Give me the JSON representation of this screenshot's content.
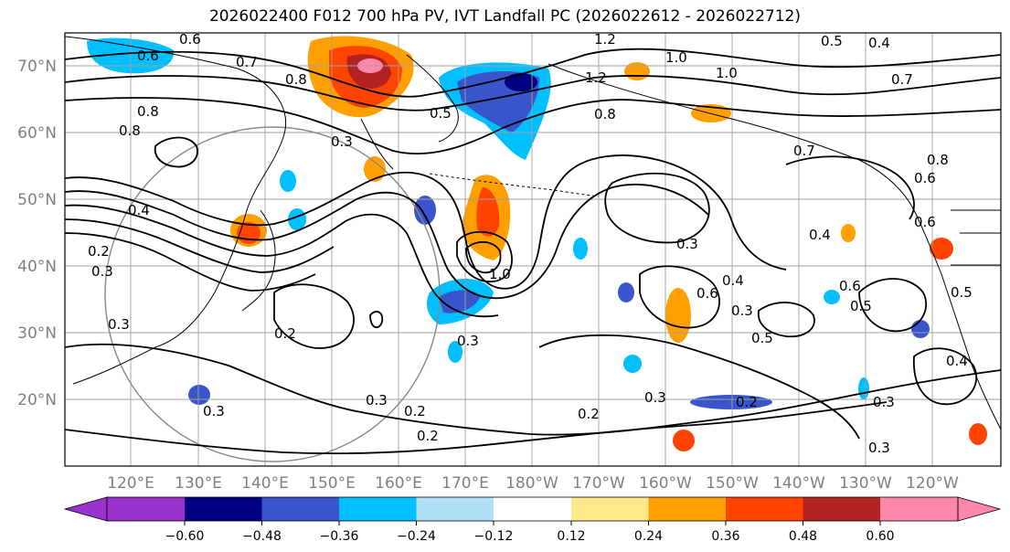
{
  "title": "2026022400 F012 700 hPa PV, IVT Landfall PC (2026022612 - 2026022712)",
  "axes": {
    "lat_labels": [
      "70°N",
      "60°N",
      "50°N",
      "40°N",
      "30°N",
      "20°N"
    ],
    "lon_labels": [
      "120°E",
      "130°E",
      "140°E",
      "150°E",
      "160°E",
      "170°E",
      "180°W",
      "170°W",
      "160°W",
      "150°W",
      "140°W",
      "130°W",
      "120°W"
    ]
  },
  "colorbar": {
    "colors": [
      "#9933cc",
      "#000080",
      "#3a55cc",
      "#00bfff",
      "#b0e0f8",
      "#ffffff",
      "#ffe88a",
      "#ffa000",
      "#ff4400",
      "#b22222",
      "#ff88aa"
    ],
    "tick_labels": [
      "−0.60",
      "−0.48",
      "−0.36",
      "−0.24",
      "−0.12",
      "0.12",
      "0.24",
      "0.36",
      "0.48",
      "0.60"
    ]
  },
  "contour_labels": [
    "0.6",
    "0.6",
    "0.7",
    "0.8",
    "0.8",
    "1.2",
    "1.0",
    "1.0",
    "1.2",
    "0.5",
    "0.5",
    "0.4",
    "0.7",
    "0.3",
    "0.8",
    "0.7",
    "0.8",
    "0.6",
    "0.6",
    "0.4",
    "0.3",
    "0.6",
    "0.4",
    "0.3",
    "0.5",
    "0.6",
    "0.5",
    "0.4",
    "0.3",
    "0.3",
    "0.2",
    "0.3",
    "0.2",
    "0.3",
    "0.3",
    "0.2",
    "0.2",
    "1.0",
    "0.3",
    "0.2",
    "0.3",
    "0.2",
    "0.3",
    "0.4",
    "0.5",
    "0.8"
  ]
}
